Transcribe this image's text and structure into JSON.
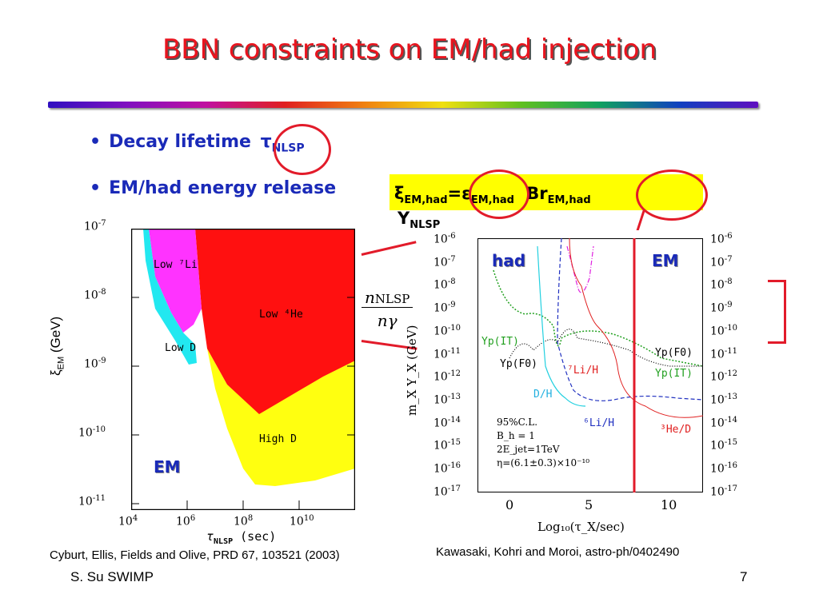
{
  "slide": {
    "title": "BBN constraints on EM/had injection",
    "bullets": [
      "Decay lifetime",
      "EM/had energy release"
    ],
    "tau_symbol": "τ",
    "tau_sub": "NLSP",
    "formula": {
      "xi": "ξ",
      "xi_sub": "EM,had",
      "eq": "=",
      "eps": "ε",
      "eps_sub": "EM,had",
      "br": "Br",
      "br_sub": "EM,had",
      "y": "Y",
      "y_sub": "NLSP",
      "frac_num": "n",
      "frac_num_sub": "NLSP",
      "frac_den": "nγ"
    },
    "footer_left": "S. Su  SWIMP",
    "page_number": "7",
    "colors": {
      "title": "#e8141e",
      "bullet": "#1a2ab8",
      "ring": "#e21b2a",
      "highlight": "#ffff00"
    }
  },
  "left_plot": {
    "y_ticks": [
      "10",
      "10",
      "10",
      "10",
      "10"
    ],
    "y_exps": [
      "-7",
      "-8",
      "-9",
      "-10",
      "-11"
    ],
    "x_ticks": [
      "10",
      "10",
      "10",
      "10"
    ],
    "x_exps": [
      "4",
      "6",
      "8",
      "10"
    ],
    "ylabel_sym": "ξ",
    "ylabel_sub": "EM",
    "ylabel_unit": "(GeV)",
    "xlabel_sym": "τ",
    "xlabel_sub": "NLSP",
    "xlabel_unit": "(sec)",
    "regions": {
      "low_li": "Low ⁷Li",
      "low_he": "Low ⁴He",
      "low_d": "Low D",
      "high_d": "High D"
    },
    "em_label": "EM",
    "citation": "Cyburt, Ellis, Fields and Olive, PRD 67, 103521 (2003)",
    "region_colors": {
      "low_li": "#ff33ff",
      "low_he": "#ff1010",
      "low_d": "#22e8f0",
      "high_d": "#ffff10"
    }
  },
  "right_plot": {
    "y_ticks": [
      "10",
      "10",
      "10",
      "10",
      "10",
      "10",
      "10",
      "10",
      "10",
      "10",
      "10",
      "10"
    ],
    "y_exps": [
      "-6",
      "-7",
      "-8",
      "-9",
      "-10",
      "-11",
      "-12",
      "-13",
      "-14",
      "-15",
      "-16",
      "-17"
    ],
    "x_ticks": [
      "0",
      "5",
      "10"
    ],
    "ylabel": "m_X Y_X (GeV)",
    "xlabel": "Log₁₀(τ_X/sec)",
    "had_label": "had",
    "em_label": "EM",
    "curve_labels": {
      "yp_it_left": "Yp(IT)",
      "yp_f0_left": "Yp(F0)",
      "li7": "⁷Li/H",
      "dh": "D/H",
      "li6": "⁶Li/H",
      "he3": "³He/D",
      "yp_f0_right": "Yp(F0)",
      "yp_it_right": "Yp(IT)"
    },
    "params": [
      "95%C.L.",
      "B_h = 1",
      "2E_jet=1TeV",
      "η=(6.1±0.3)×10⁻¹⁰"
    ],
    "citation": "Kawasaki, Kohri and Moroi, astro-ph/0402490"
  }
}
